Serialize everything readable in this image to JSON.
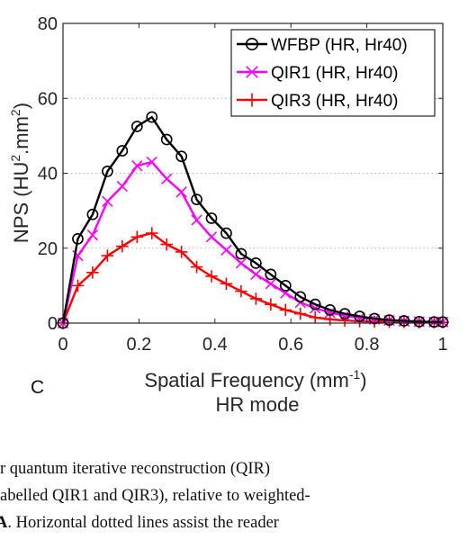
{
  "chart_data": {
    "type": "line",
    "panel_label": "C",
    "xlabel_base": "Spatial Frequency (mm",
    "xlabel_exp": "-1",
    "xlabel_tail": ")",
    "ylabel_base": "NPS (HU",
    "ylabel_exp": "2",
    "ylabel_mid": ".mm",
    "ylabel_exp2": "2",
    "ylabel_tail": ")",
    "subtitle": "HR mode",
    "xlim": [
      0,
      1
    ],
    "ylim": [
      0,
      80
    ],
    "x_ticks": [
      0,
      0.2,
      0.4,
      0.6,
      0.8,
      1
    ],
    "x_tick_labels": [
      "0",
      "0.2",
      "0.4",
      "0.6",
      "0.8",
      "1"
    ],
    "y_ticks": [
      0,
      20,
      40,
      60,
      80
    ],
    "y_tick_labels": [
      "0",
      "20",
      "40",
      "60",
      "80"
    ],
    "grid": "horizontal dotted",
    "legend_position": "top-right",
    "x": [
      0,
      0.039,
      0.078,
      0.117,
      0.156,
      0.195,
      0.234,
      0.273,
      0.312,
      0.352,
      0.391,
      0.43,
      0.469,
      0.508,
      0.547,
      0.586,
      0.625,
      0.664,
      0.703,
      0.742,
      0.781,
      0.82,
      0.859,
      0.898,
      0.938,
      0.977,
      1.0
    ],
    "series": [
      {
        "name": "WFBP (HR, Hr40)",
        "color": "#000000",
        "marker": "circle",
        "values": [
          0,
          22.5,
          29,
          40.5,
          46,
          52.5,
          55,
          49,
          44.5,
          33,
          28,
          24,
          18.5,
          16,
          13,
          10,
          7,
          5,
          3.5,
          2.5,
          1.8,
          1.2,
          0.8,
          0.6,
          0.4,
          0.3,
          0.3
        ]
      },
      {
        "name": "QIR1 (HR, Hr40)",
        "color": "#ff00ff",
        "marker": "x",
        "values": [
          0,
          18,
          23.5,
          32.5,
          36.5,
          42,
          43,
          38.5,
          35,
          27.5,
          23,
          19.5,
          16,
          13,
          10.5,
          8,
          5.5,
          4,
          2.8,
          2,
          1.4,
          1,
          0.7,
          0.5,
          0.4,
          0.3,
          0.3
        ]
      },
      {
        "name": "QIR3 (HR, Hr40)",
        "color": "#ff0000",
        "marker": "plus",
        "values": [
          0,
          10,
          13.5,
          18,
          20.5,
          23,
          24,
          21,
          19,
          15,
          12.5,
          10.5,
          8.5,
          6.5,
          5,
          3.5,
          2.5,
          1.5,
          1,
          0.7,
          0.5,
          0.4,
          0.3,
          0.3,
          0.2,
          0.2,
          0.2
        ]
      }
    ]
  },
  "caption": {
    "line1": "r quantum iterative reconstruction (QIR)",
    "line2": "abelled QIR1 and QIR3), relative to weighted-",
    "line3_bold": "A",
    "line3_rest": ". Horizontal dotted lines assist the reader"
  }
}
